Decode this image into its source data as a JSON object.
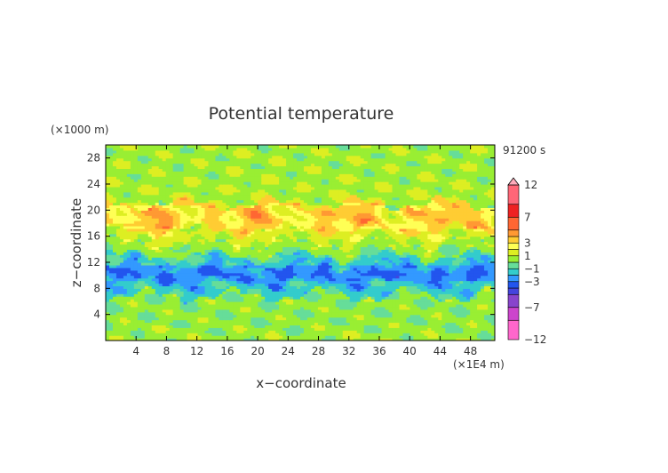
{
  "chart_data": {
    "type": "heatmap",
    "title": "Potential temperature",
    "xlabel": "x−coordinate",
    "ylabel": "z−coordinate",
    "x_unit": "(×1E4 m)",
    "y_unit": "(×1000 m)",
    "time_label": "91200 s",
    "xlim": [
      0,
      51.2
    ],
    "ylim": [
      0,
      30
    ],
    "x_ticks": [
      4,
      8,
      12,
      16,
      20,
      24,
      28,
      32,
      36,
      40,
      44,
      48
    ],
    "y_ticks": [
      4,
      8,
      12,
      16,
      20,
      24,
      28
    ],
    "colorbar": {
      "levels": [
        -12,
        -9,
        -7,
        -5,
        -4,
        -3,
        -2,
        -1,
        0,
        1,
        2,
        3,
        4,
        5,
        7,
        9,
        12
      ],
      "labels": [
        12,
        7,
        3,
        1,
        -1,
        -3,
        -7,
        -12
      ],
      "colors": [
        "#ff66cc",
        "#cc44cc",
        "#8844cc",
        "#4444dd",
        "#2255ee",
        "#3399ff",
        "#33cccc",
        "#66dd99",
        "#99ee33",
        "#ddee22",
        "#ffff55",
        "#ffcc33",
        "#ff9933",
        "#ff6633",
        "#ee2222",
        "#ff6677",
        "#ffaabb"
      ],
      "extend_max": true
    },
    "bands": [
      {
        "z": [
          0,
          2
        ],
        "value": 0.5
      },
      {
        "z": [
          2,
          7
        ],
        "value": 0.3
      },
      {
        "z": [
          7,
          9
        ],
        "value": -1.5
      },
      {
        "z": [
          9,
          11.5
        ],
        "value": -2.5
      },
      {
        "z": [
          11.5,
          13
        ],
        "value": -1.3
      },
      {
        "z": [
          13,
          15
        ],
        "value": 0.2
      },
      {
        "z": [
          15,
          17
        ],
        "value": 1.5
      },
      {
        "z": [
          17,
          21
        ],
        "value": 3.2
      },
      {
        "z": [
          21,
          24
        ],
        "value": 0.8
      },
      {
        "z": [
          24,
          30
        ],
        "value": 0.6
      }
    ]
  }
}
